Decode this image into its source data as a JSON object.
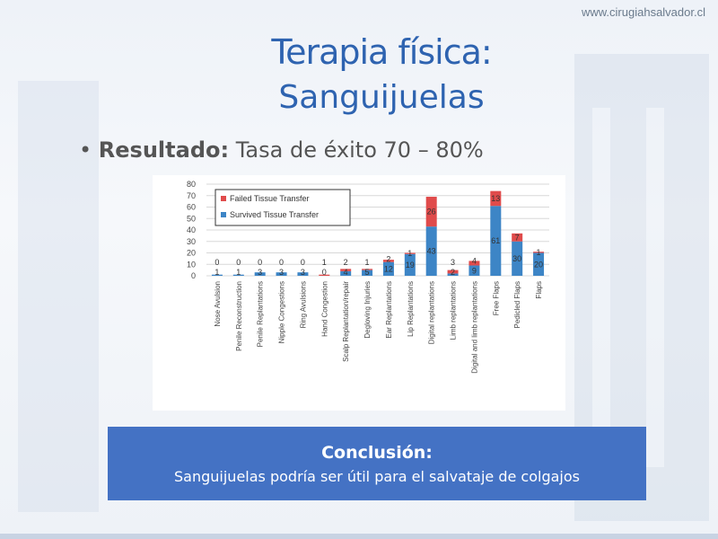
{
  "site_url": "www.cirugiahsalvador.cl",
  "title_line1": "Terapia física:",
  "title_line2": "Sanguijuelas",
  "bullet": {
    "label": "Resultado:",
    "text": " Tasa de éxito 70 – 80%"
  },
  "conclusion": {
    "heading": "Conclusión:",
    "text": "Sanguijuelas podría ser útil para el salvataje de colgajos",
    "color": "#4472c4"
  },
  "chart_data": {
    "type": "bar",
    "stacked": true,
    "categories": [
      "Nose Avulsion",
      "Penile Reconstruction",
      "Penile Replantations",
      "Nipple Congestions",
      "Ring Avulsions",
      "Hand Congestion",
      "Scalp Replantation/repair",
      "Degloving Injuries",
      "Ear Replantations",
      "Lip Replantations",
      "Digital replantations",
      "Limb replantations",
      "Digital and limb replantations",
      "Free Flaps",
      "Pedicled Flaps",
      "Flaps"
    ],
    "series": [
      {
        "name": "Survived Tissue Transfer",
        "color": "#3d85c6",
        "values": [
          1,
          1,
          3,
          3,
          3,
          0,
          4,
          5,
          12,
          19,
          43,
          2,
          9,
          61,
          30,
          20
        ]
      },
      {
        "name": "Failed Tissue Transfer",
        "color": "#e04b4b",
        "values": [
          0,
          0,
          0,
          0,
          0,
          1,
          2,
          1,
          2,
          1,
          26,
          3,
          4,
          13,
          7,
          1
        ]
      }
    ],
    "yticks": [
      0,
      10,
      20,
      30,
      40,
      50,
      60,
      70,
      80
    ],
    "ylim": [
      0,
      80
    ],
    "grid": true,
    "legend": "top-left"
  }
}
